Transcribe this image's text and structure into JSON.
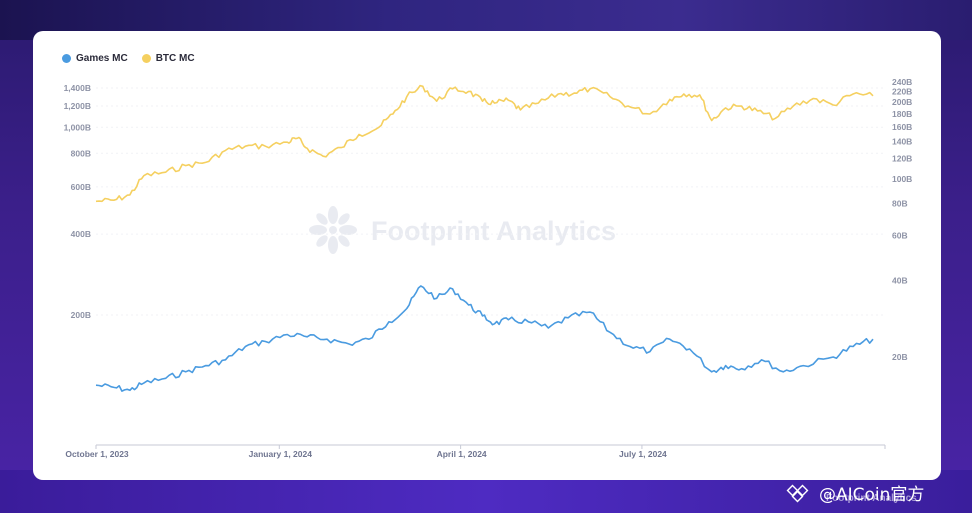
{
  "legend": [
    {
      "label": "Games MC",
      "color": "#4a9be0"
    },
    {
      "label": "BTC MC",
      "color": "#f5d060"
    }
  ],
  "watermark": {
    "text": "Footprint Analytics"
  },
  "corner": {
    "brand": "@AICoin官方",
    "sub": "Footprint Analytics"
  },
  "chart_data": {
    "type": "line",
    "title": "",
    "xlabel": "",
    "x_ticks": [
      "October 1, 2023",
      "January 1, 2024",
      "April 1, 2024",
      "July 1, 2024"
    ],
    "x_range": [
      "2023-10-01",
      "2024-10-31"
    ],
    "y_left": {
      "scale": "log",
      "ticks": [
        "200B",
        "400B",
        "600B",
        "800B",
        "1,000B",
        "1,200B",
        "1,400B"
      ]
    },
    "y_right": {
      "scale": "log",
      "ticks": [
        "20B",
        "40B",
        "60B",
        "80B",
        "100B",
        "120B",
        "140B",
        "160B",
        "180B",
        "200B",
        "220B",
        "240B"
      ]
    },
    "series": [
      {
        "name": "BTC MC",
        "axis": "left",
        "color": "#f5d060",
        "points": [
          [
            "2023-10-01",
            530
          ],
          [
            "2023-10-10",
            535
          ],
          [
            "2023-10-18",
            560
          ],
          [
            "2023-10-25",
            660
          ],
          [
            "2023-11-05",
            680
          ],
          [
            "2023-11-15",
            720
          ],
          [
            "2023-11-25",
            740
          ],
          [
            "2023-12-05",
            820
          ],
          [
            "2023-12-15",
            850
          ],
          [
            "2023-12-25",
            850
          ],
          [
            "2024-01-05",
            880
          ],
          [
            "2024-01-10",
            910
          ],
          [
            "2024-01-15",
            835
          ],
          [
            "2024-01-23",
            780
          ],
          [
            "2024-02-01",
            840
          ],
          [
            "2024-02-10",
            940
          ],
          [
            "2024-02-20",
            1000
          ],
          [
            "2024-02-27",
            1120
          ],
          [
            "2024-03-05",
            1300
          ],
          [
            "2024-03-13",
            1420
          ],
          [
            "2024-03-20",
            1250
          ],
          [
            "2024-03-28",
            1390
          ],
          [
            "2024-04-05",
            1360
          ],
          [
            "2024-04-12",
            1250
          ],
          [
            "2024-04-18",
            1230
          ],
          [
            "2024-04-25",
            1260
          ],
          [
            "2024-05-01",
            1160
          ],
          [
            "2024-05-10",
            1230
          ],
          [
            "2024-05-20",
            1330
          ],
          [
            "2024-05-28",
            1340
          ],
          [
            "2024-06-05",
            1390
          ],
          [
            "2024-06-15",
            1300
          ],
          [
            "2024-06-24",
            1200
          ],
          [
            "2024-07-05",
            1120
          ],
          [
            "2024-07-15",
            1270
          ],
          [
            "2024-07-22",
            1330
          ],
          [
            "2024-07-30",
            1320
          ],
          [
            "2024-08-05",
            1060
          ],
          [
            "2024-08-12",
            1180
          ],
          [
            "2024-08-20",
            1200
          ],
          [
            "2024-08-28",
            1150
          ],
          [
            "2024-09-06",
            1080
          ],
          [
            "2024-09-15",
            1200
          ],
          [
            "2024-09-25",
            1280
          ],
          [
            "2024-10-05",
            1210
          ],
          [
            "2024-10-15",
            1330
          ],
          [
            "2024-10-25",
            1310
          ]
        ]
      },
      {
        "name": "Games MC",
        "axis": "right",
        "color": "#4a9be0",
        "points": [
          [
            "2023-10-01",
            15.5
          ],
          [
            "2023-10-10",
            15.2
          ],
          [
            "2023-10-18",
            14.8
          ],
          [
            "2023-10-25",
            15.8
          ],
          [
            "2023-11-05",
            16.5
          ],
          [
            "2023-11-15",
            17.5
          ],
          [
            "2023-11-25",
            18.5
          ],
          [
            "2023-12-05",
            19.5
          ],
          [
            "2023-12-15",
            22.0
          ],
          [
            "2023-12-25",
            23.0
          ],
          [
            "2024-01-05",
            24.5
          ],
          [
            "2024-01-15",
            24.0
          ],
          [
            "2024-01-25",
            23.5
          ],
          [
            "2024-02-05",
            22.5
          ],
          [
            "2024-02-15",
            23.5
          ],
          [
            "2024-02-25",
            27.5
          ],
          [
            "2024-03-05",
            31.0
          ],
          [
            "2024-03-12",
            38.0
          ],
          [
            "2024-03-20",
            34.0
          ],
          [
            "2024-03-28",
            37.0
          ],
          [
            "2024-04-05",
            32.0
          ],
          [
            "2024-04-12",
            29.0
          ],
          [
            "2024-04-18",
            27.0
          ],
          [
            "2024-04-25",
            28.0
          ],
          [
            "2024-05-05",
            27.5
          ],
          [
            "2024-05-15",
            26.0
          ],
          [
            "2024-05-25",
            28.5
          ],
          [
            "2024-06-05",
            30.0
          ],
          [
            "2024-06-15",
            25.0
          ],
          [
            "2024-06-25",
            22.0
          ],
          [
            "2024-07-05",
            21.0
          ],
          [
            "2024-07-15",
            23.5
          ],
          [
            "2024-07-25",
            21.5
          ],
          [
            "2024-08-05",
            17.5
          ],
          [
            "2024-08-12",
            18.5
          ],
          [
            "2024-08-20",
            18.0
          ],
          [
            "2024-08-30",
            19.5
          ],
          [
            "2024-09-10",
            17.5
          ],
          [
            "2024-09-20",
            18.5
          ],
          [
            "2024-10-05",
            20.0
          ],
          [
            "2024-10-15",
            22.0
          ],
          [
            "2024-10-25",
            23.5
          ]
        ]
      }
    ]
  }
}
